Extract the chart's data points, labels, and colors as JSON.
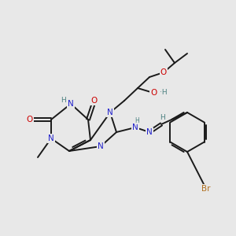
{
  "bg_color": "#e8e8e8",
  "bond_color": "#1a1a1a",
  "bond_width": 1.4,
  "atom_colors": {
    "N": "#2020cc",
    "O": "#cc0000",
    "H": "#4a8080",
    "Br": "#b07020",
    "C": "#1a1a1a"
  },
  "font_size": 7.5,
  "font_size_small": 6.5
}
